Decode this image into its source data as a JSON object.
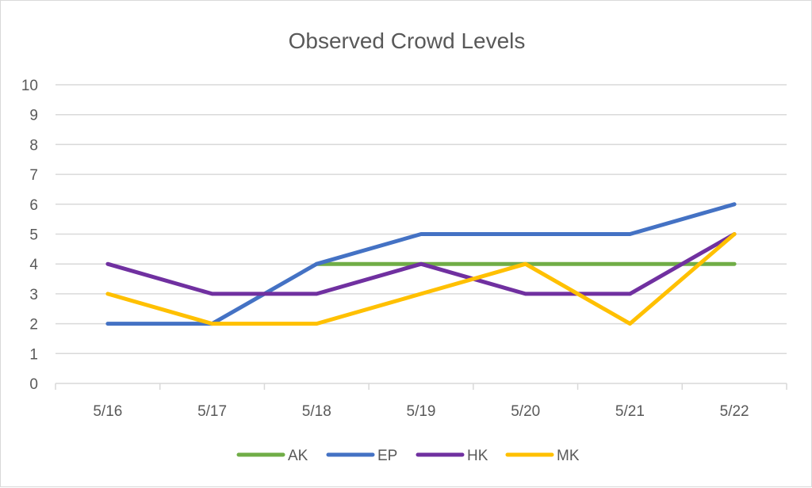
{
  "chart_data": {
    "type": "line",
    "title": "Observed Crowd Levels",
    "xlabel": "",
    "ylabel": "",
    "categories": [
      "5/16",
      "5/17",
      "5/18",
      "5/19",
      "5/20",
      "5/21",
      "5/22"
    ],
    "ylim": [
      0,
      10
    ],
    "yticks": [
      "0",
      "1",
      "2",
      "3",
      "4",
      "5",
      "6",
      "7",
      "8",
      "9",
      "10"
    ],
    "grid": true,
    "legend_position": "bottom",
    "series": [
      {
        "name": "AK",
        "color": "#70ad47",
        "values": [
          null,
          null,
          4,
          4,
          4,
          4,
          4
        ]
      },
      {
        "name": "EP",
        "color": "#4472c4",
        "values": [
          2,
          2,
          4,
          5,
          5,
          5,
          6
        ]
      },
      {
        "name": "HK",
        "color": "#7030a0",
        "values": [
          4,
          3,
          3,
          4,
          3,
          3,
          5
        ]
      },
      {
        "name": "MK",
        "color": "#ffc000",
        "values": [
          3,
          2,
          2,
          3,
          4,
          2,
          5
        ]
      }
    ]
  }
}
